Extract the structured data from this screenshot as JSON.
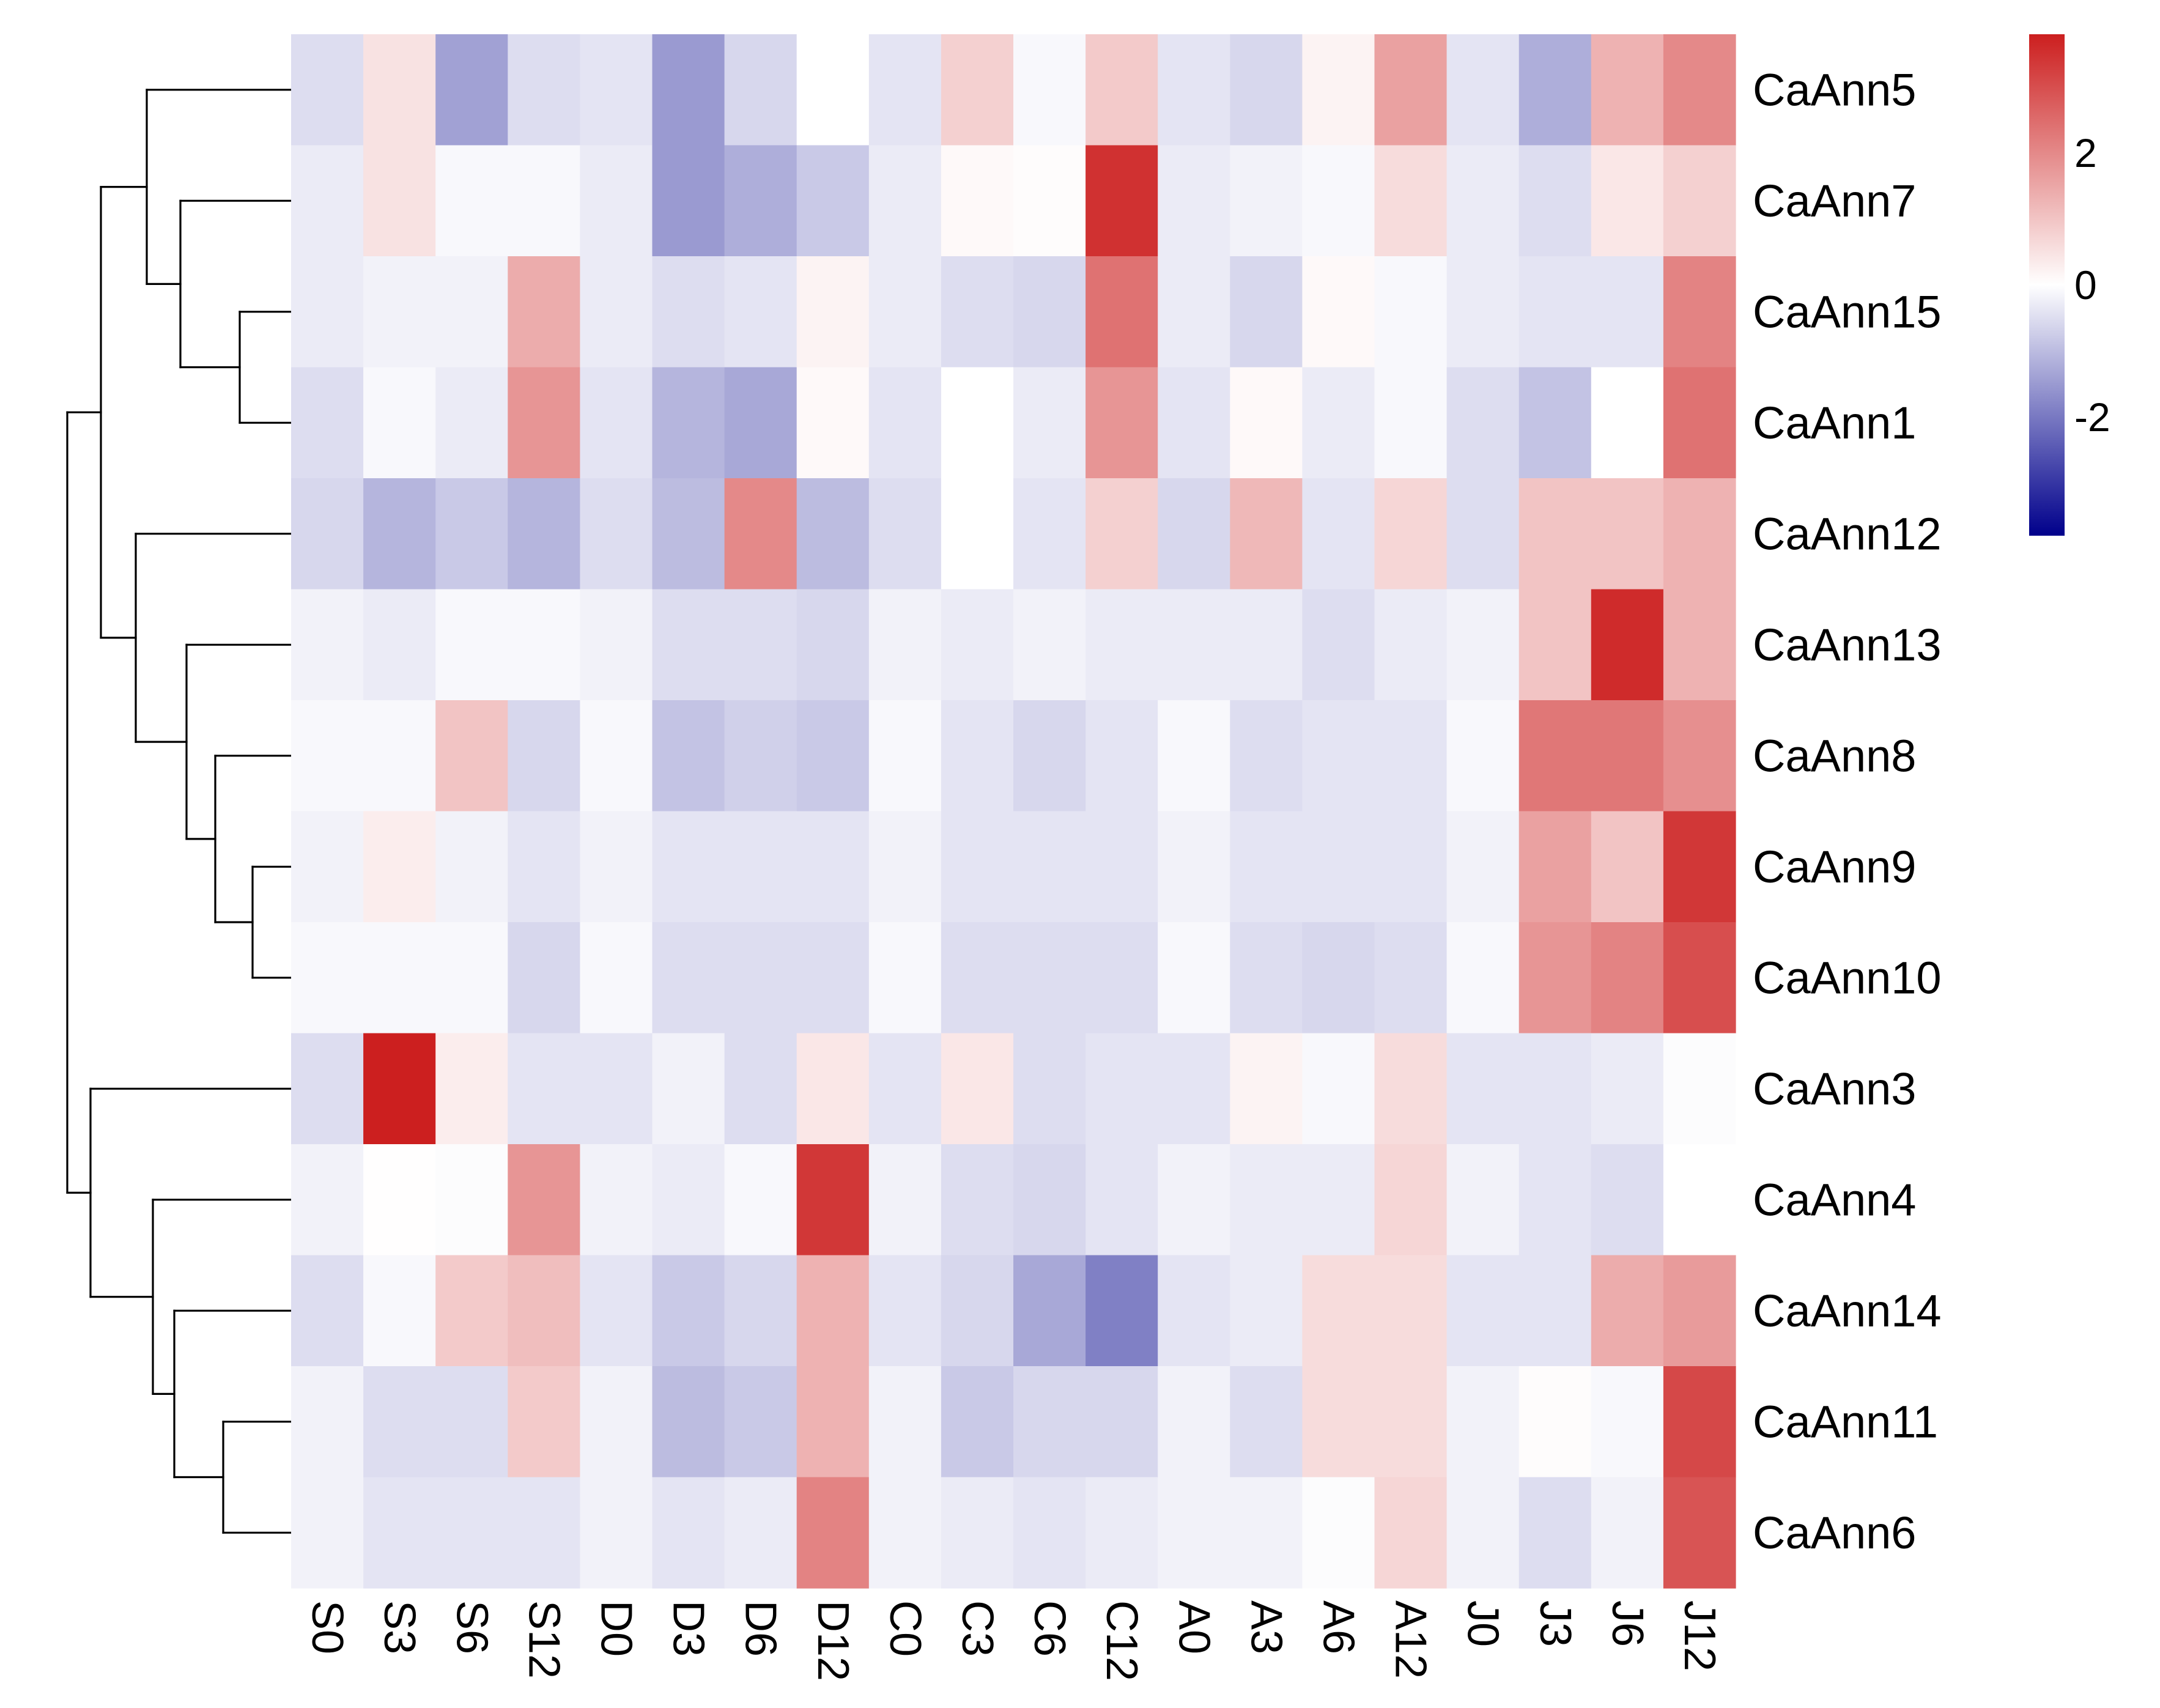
{
  "chart_data": {
    "type": "heatmap",
    "title": "",
    "xlabel": "",
    "ylabel": "",
    "columns": [
      "S0",
      "S3",
      "S6",
      "S12",
      "D0",
      "D3",
      "D6",
      "D12",
      "C0",
      "C3",
      "C6",
      "C12",
      "A0",
      "A3",
      "A6",
      "A12",
      "J0",
      "J3",
      "J6",
      "J12"
    ],
    "rows": [
      "CaAnn5",
      "CaAnn7",
      "CaAnn15",
      "CaAnn1",
      "CaAnn12",
      "CaAnn13",
      "CaAnn8",
      "CaAnn9",
      "CaAnn10",
      "CaAnn3",
      "CaAnn4",
      "CaAnn14",
      "CaAnn11",
      "CaAnn6"
    ],
    "values": [
      [
        -0.5,
        0.5,
        -1.4,
        -0.5,
        -0.4,
        -1.5,
        -0.6,
        0.0,
        -0.4,
        0.8,
        -0.1,
        0.9,
        -0.4,
        -0.6,
        0.2,
        1.6,
        -0.4,
        -1.2,
        1.3,
        2.0
      ],
      [
        -0.3,
        0.5,
        -0.1,
        -0.1,
        -0.3,
        -1.5,
        -1.2,
        -0.8,
        -0.3,
        0.1,
        0.05,
        3.5,
        -0.3,
        -0.2,
        -0.1,
        0.6,
        -0.3,
        -0.5,
        0.4,
        0.8
      ],
      [
        -0.3,
        -0.2,
        -0.2,
        1.4,
        -0.3,
        -0.5,
        -0.4,
        0.2,
        -0.3,
        -0.5,
        -0.6,
        2.4,
        -0.3,
        -0.6,
        0.1,
        -0.1,
        -0.3,
        -0.4,
        -0.4,
        2.1
      ],
      [
        -0.5,
        -0.1,
        -0.3,
        1.8,
        -0.4,
        -1.1,
        -1.3,
        0.1,
        -0.4,
        0.0,
        -0.3,
        1.8,
        -0.4,
        0.1,
        -0.3,
        -0.1,
        -0.5,
        -0.9,
        0.0,
        2.4
      ],
      [
        -0.6,
        -1.1,
        -0.8,
        -1.1,
        -0.5,
        -1.0,
        2.0,
        -1.0,
        -0.5,
        0.0,
        -0.4,
        0.8,
        -0.6,
        1.2,
        -0.4,
        0.7,
        -0.5,
        1.0,
        1.0,
        1.3
      ],
      [
        -0.2,
        -0.3,
        -0.1,
        -0.1,
        -0.2,
        -0.5,
        -0.5,
        -0.6,
        -0.2,
        -0.3,
        -0.2,
        -0.3,
        -0.3,
        -0.3,
        -0.5,
        -0.3,
        -0.2,
        1.0,
        3.6,
        1.3
      ],
      [
        -0.1,
        -0.1,
        1.0,
        -0.6,
        -0.1,
        -0.9,
        -0.7,
        -0.8,
        -0.1,
        -0.4,
        -0.6,
        -0.4,
        -0.1,
        -0.5,
        -0.4,
        -0.4,
        -0.1,
        2.3,
        2.3,
        1.9
      ],
      [
        -0.2,
        0.3,
        -0.2,
        -0.4,
        -0.2,
        -0.4,
        -0.4,
        -0.4,
        -0.2,
        -0.4,
        -0.4,
        -0.4,
        -0.2,
        -0.4,
        -0.4,
        -0.4,
        -0.2,
        1.6,
        1.0,
        3.4
      ],
      [
        -0.1,
        -0.1,
        -0.1,
        -0.6,
        -0.1,
        -0.5,
        -0.5,
        -0.5,
        -0.1,
        -0.5,
        -0.5,
        -0.5,
        -0.1,
        -0.5,
        -0.6,
        -0.5,
        -0.1,
        1.8,
        2.1,
        3.0
      ],
      [
        -0.5,
        3.8,
        0.3,
        -0.4,
        -0.4,
        -0.2,
        -0.5,
        0.4,
        -0.4,
        0.4,
        -0.5,
        -0.4,
        -0.4,
        0.2,
        -0.1,
        0.6,
        -0.4,
        -0.4,
        -0.3,
        -0.05
      ],
      [
        -0.2,
        0.02,
        -0.05,
        1.8,
        -0.2,
        -0.3,
        -0.1,
        3.4,
        -0.2,
        -0.5,
        -0.6,
        -0.4,
        -0.2,
        -0.3,
        -0.3,
        0.7,
        -0.2,
        -0.4,
        -0.5,
        0.0
      ],
      [
        -0.5,
        -0.1,
        0.9,
        1.1,
        -0.4,
        -0.8,
        -0.6,
        1.3,
        -0.4,
        -0.6,
        -1.3,
        -1.9,
        -0.4,
        -0.3,
        0.6,
        0.6,
        -0.4,
        -0.4,
        1.4,
        1.7
      ],
      [
        -0.2,
        -0.5,
        -0.5,
        0.9,
        -0.2,
        -1.0,
        -0.8,
        1.3,
        -0.2,
        -0.8,
        -0.6,
        -0.6,
        -0.2,
        -0.5,
        0.6,
        0.6,
        -0.2,
        0.05,
        -0.1,
        3.1
      ],
      [
        -0.2,
        -0.4,
        -0.4,
        -0.4,
        -0.2,
        -0.4,
        -0.3,
        2.1,
        -0.2,
        -0.3,
        -0.4,
        -0.3,
        -0.2,
        -0.2,
        -0.05,
        0.7,
        -0.2,
        -0.5,
        -0.2,
        2.9
      ]
    ],
    "color_scale": {
      "min": -3.8,
      "max": 3.8,
      "low_color": "#00008b",
      "mid_color": "#ffffff",
      "high_color": "#cc1f1f",
      "ticks": [
        2,
        0,
        -2
      ],
      "tick_labels": [
        "2",
        "0",
        "-2"
      ]
    },
    "legend_placement": "top-right",
    "grid": false,
    "row_dendrogram": true,
    "column_label_rotation": "90"
  }
}
